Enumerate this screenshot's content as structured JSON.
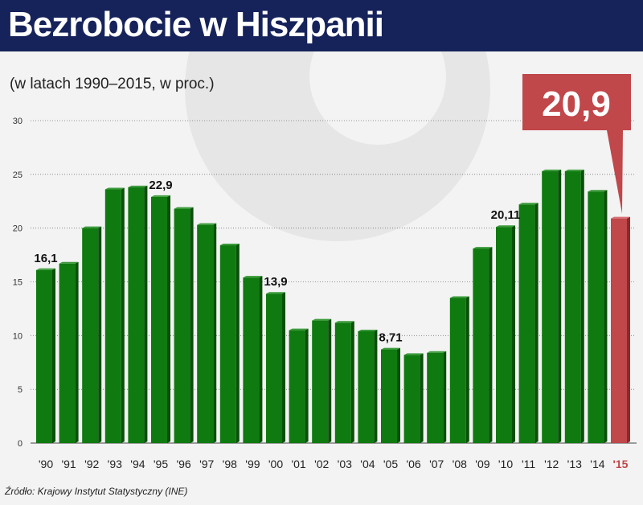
{
  "title": "Bezrobocie w Hiszpanii",
  "subtitle": "(w latach 1990–2015, w proc.)",
  "source": "Źródło: Krajowy Instytut Statystyczny (INE)",
  "colors": {
    "bar": "#0f7a0f",
    "highlight": "#c0474a",
    "header": "#16225a"
  },
  "chart_data": {
    "type": "bar",
    "title": "Bezrobocie w Hiszpanii",
    "ylabel": "w proc.",
    "ylim": [
      0,
      30
    ],
    "yticks": [
      "0",
      "5",
      "10",
      "15",
      "20",
      "25",
      "30"
    ],
    "categories": [
      "'90",
      "'91",
      "'92",
      "'93",
      "'94",
      "'95",
      "'96",
      "'97",
      "'98",
      "'99",
      "'00",
      "'01",
      "'02",
      "'03",
      "'04",
      "'05",
      "'06",
      "'07",
      "'08",
      "'09",
      "'10",
      "'11",
      "'12",
      "'13",
      "'14",
      "'15"
    ],
    "values": [
      16.1,
      16.7,
      20.0,
      23.6,
      23.8,
      22.9,
      21.8,
      20.3,
      18.4,
      15.4,
      13.9,
      10.5,
      11.4,
      11.2,
      10.4,
      8.71,
      8.2,
      8.4,
      13.5,
      18.1,
      20.11,
      22.2,
      25.3,
      25.3,
      23.4,
      20.9
    ],
    "data_labels": {
      "0": "16,1",
      "5": "22,9",
      "10": "13,9",
      "15": "8,71",
      "20": "20,11"
    },
    "highlight": {
      "index": 25,
      "label": "20,9"
    },
    "grid": true
  }
}
